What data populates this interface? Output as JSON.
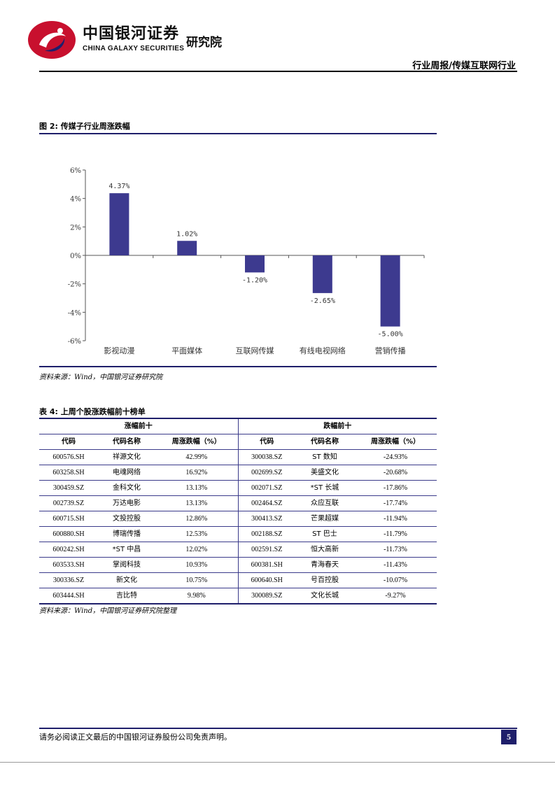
{
  "header": {
    "logo_cn": "中国银河证券",
    "logo_en": "CHINA GALAXY SECURITIES",
    "logo_inst": "研究院",
    "report_type": "行业周报/传媒互联网行业",
    "colors": {
      "brand_red": "#c8102e",
      "brand_navy": "#1f1f6b"
    }
  },
  "figure": {
    "title": "图 2: 传媒子行业周涨跌幅",
    "source": "资料来源：Wind，中国银河证券研究院"
  },
  "chart_data": {
    "type": "bar",
    "categories": [
      "影视动漫",
      "平面媒体",
      "互联网传媒",
      "有线电视网络",
      "营销传播"
    ],
    "values": [
      4.37,
      1.02,
      -1.2,
      -2.65,
      -5.0
    ],
    "data_labels": [
      "4.37%",
      "1.02%",
      "-1.20%",
      "-2.65%",
      "-5.00%"
    ],
    "ylim": [
      -6,
      6
    ],
    "yticks": [
      6,
      4,
      2,
      0,
      -2,
      -4,
      -6
    ],
    "ytick_labels": [
      "6%",
      "4%",
      "2%",
      "0%",
      "-2%",
      "-4%",
      "-6%"
    ],
    "bar_color": "#3d3a8f",
    "grid": false,
    "legend": "none"
  },
  "table": {
    "title": "表 4: 上周个股涨跌幅前十榜单",
    "group_gain": "涨幅前十",
    "group_loss": "跌幅前十",
    "headers": [
      "代码",
      "代码名称",
      "周涨跌幅（%）",
      "代码",
      "代码名称",
      "周涨跌幅（%）"
    ],
    "rows": [
      [
        "600576.SH",
        "祥源文化",
        "42.99%",
        "300038.SZ",
        "ST 数知",
        "-24.93%"
      ],
      [
        "603258.SH",
        "电魂网络",
        "16.92%",
        "002699.SZ",
        "美盛文化",
        "-20.68%"
      ],
      [
        "300459.SZ",
        "金科文化",
        "13.13%",
        "002071.SZ",
        "*ST 长城",
        "-17.86%"
      ],
      [
        "002739.SZ",
        "万达电影",
        "13.13%",
        "002464.SZ",
        "众应互联",
        "-17.74%"
      ],
      [
        "600715.SH",
        "文投控股",
        "12.86%",
        "300413.SZ",
        "芒果超媒",
        "-11.94%"
      ],
      [
        "600880.SH",
        "博瑞传播",
        "12.53%",
        "002188.SZ",
        "ST 巴士",
        "-11.79%"
      ],
      [
        "600242.SH",
        "*ST 中昌",
        "12.02%",
        "002591.SZ",
        "恒大高新",
        "-11.73%"
      ],
      [
        "603533.SH",
        "掌阅科技",
        "10.93%",
        "600381.SH",
        "青海春天",
        "-11.43%"
      ],
      [
        "300336.SZ",
        "新文化",
        "10.75%",
        "600640.SH",
        "号百控股",
        "-10.07%"
      ],
      [
        "603444.SH",
        "吉比特",
        "9.98%",
        "300089.SZ",
        "文化长城",
        "-9.27%"
      ]
    ],
    "source": "资料来源：Wind，中国银河证券研究院整理"
  },
  "footer": {
    "disclaimer": "请务必阅读正文最后的中国银河证券股份公司免责声明。",
    "page": "5"
  }
}
